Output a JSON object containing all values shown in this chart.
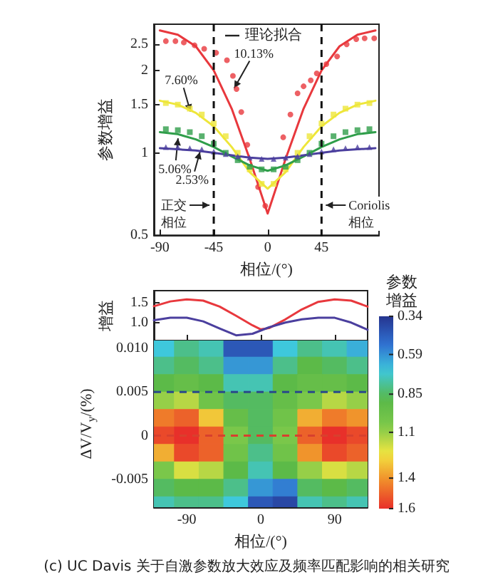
{
  "chart_data": [
    {
      "type": "line",
      "xlabel": "相位/(°)",
      "ylabel": "参数增益",
      "xlim": [
        -95,
        93
      ],
      "xticks": [
        -90,
        -45,
        0,
        45
      ],
      "ylim": [
        0.5,
        2.95
      ],
      "yticks": [
        0.5,
        1,
        1.5,
        2,
        2.5
      ],
      "log": "y",
      "series": [
        {
          "type": "line",
          "color": "#e8383d",
          "x": [
            -90,
            -75,
            -60,
            -45,
            -30,
            -15,
            0,
            15,
            30,
            45,
            60,
            75,
            90
          ],
          "values": [
            2.8,
            2.7,
            2.45,
            2.0,
            1.45,
            0.95,
            0.6,
            0.95,
            1.45,
            2.0,
            2.45,
            2.7,
            2.8
          ]
        },
        {
          "type": "line",
          "color": "#eee63a",
          "x": [
            -90,
            -75,
            -60,
            -45,
            -30,
            -15,
            0,
            15,
            30,
            45,
            60,
            75,
            90
          ],
          "values": [
            1.55,
            1.5,
            1.4,
            1.25,
            1.05,
            0.85,
            0.74,
            0.85,
            1.05,
            1.25,
            1.4,
            1.5,
            1.55
          ]
        },
        {
          "type": "line",
          "color": "#2f9e4a",
          "x": [
            -90,
            -75,
            -60,
            -45,
            -30,
            -15,
            0,
            15,
            30,
            45,
            60,
            75,
            90
          ],
          "values": [
            1.19,
            1.17,
            1.12,
            1.05,
            0.97,
            0.9,
            0.86,
            0.9,
            0.97,
            1.05,
            1.12,
            1.17,
            1.19
          ]
        },
        {
          "type": "line",
          "color": "#4b3f9e",
          "x": [
            -90,
            -75,
            -60,
            -45,
            -30,
            -15,
            0,
            15,
            30,
            45,
            60,
            75,
            90
          ],
          "values": [
            1.04,
            1.03,
            1.02,
            1.0,
            0.98,
            0.96,
            0.95,
            0.96,
            0.98,
            1.0,
            1.02,
            1.03,
            1.04
          ]
        },
        {
          "type": "scatter",
          "marker": "circle",
          "color": "#e8383d",
          "x": [
            -85,
            -77,
            -70,
            -61,
            -53,
            -43,
            -34,
            -29,
            -26,
            -22,
            -17,
            -8,
            -2,
            13,
            19,
            25,
            30,
            36,
            41,
            49,
            58,
            66,
            74,
            81,
            89
          ],
          "values": [
            2.56,
            2.56,
            2.53,
            2.47,
            2.4,
            2.32,
            2.18,
            1.91,
            1.71,
            1.41,
            1.07,
            0.75,
            0.64,
            1.14,
            1.38,
            1.65,
            1.75,
            1.84,
            1.95,
            2.11,
            2.25,
            2.49,
            2.6,
            2.62,
            2.62
          ]
        },
        {
          "type": "scatter",
          "marker": "square",
          "color": "#eee63a",
          "x": [
            -85,
            -75,
            -65,
            -55,
            -45,
            -35,
            -25,
            -15,
            -5,
            5,
            15,
            25,
            35,
            45,
            55,
            65,
            75,
            85
          ],
          "values": [
            1.52,
            1.5,
            1.45,
            1.38,
            1.28,
            1.15,
            1.0,
            0.87,
            0.77,
            0.77,
            0.87,
            1.0,
            1.15,
            1.28,
            1.38,
            1.45,
            1.5,
            1.52
          ]
        },
        {
          "type": "scatter",
          "marker": "square",
          "color": "#2f9e4a",
          "x": [
            -85,
            -75,
            -65,
            -55,
            -45,
            -35,
            -25,
            -15,
            -5,
            5,
            15,
            25,
            35,
            45,
            55,
            65,
            75,
            85
          ],
          "values": [
            1.22,
            1.21,
            1.19,
            1.15,
            1.08,
            1.0,
            0.94,
            0.89,
            0.87,
            0.87,
            0.89,
            0.94,
            1.0,
            1.08,
            1.15,
            1.19,
            1.21,
            1.22
          ]
        },
        {
          "type": "scatter",
          "marker": "triangle",
          "color": "#4b3f9e",
          "x": [
            -85,
            -75,
            -65,
            -55,
            -45,
            -35,
            -25,
            -15,
            -5,
            5,
            15,
            25,
            35,
            45,
            55,
            65,
            75,
            85
          ],
          "values": [
            1.05,
            1.05,
            1.04,
            1.03,
            1.01,
            0.99,
            0.97,
            0.96,
            0.95,
            0.95,
            0.96,
            0.97,
            0.99,
            1.01,
            1.03,
            1.04,
            1.05,
            1.05
          ]
        }
      ],
      "ref_lines": [
        {
          "axis": "x",
          "value": -45,
          "label": "正交相位",
          "line_style": "dashed",
          "color": "#111111"
        },
        {
          "axis": "x",
          "value": 45,
          "label": "Coriolis相位",
          "line_style": "dashed",
          "color": "#111111"
        }
      ],
      "annotations": [
        "理论拟合",
        {
          "text": "10.13%",
          "x": -27,
          "y": 1.75
        },
        {
          "text": "7.60%",
          "x": -65,
          "y": 1.44
        },
        {
          "text": "5.06%",
          "x": -75,
          "y": 1.11
        },
        {
          "text": "2.53%",
          "x": -57,
          "y": 0.99
        }
      ]
    },
    {
      "type": "line",
      "ylabel": "增益",
      "xlim": [
        -130,
        130
      ],
      "xticks": [
        -90,
        0,
        90
      ],
      "ylim": [
        0.55,
        1.8
      ],
      "yticks": [
        {
          "value": 1,
          "label": "1.0"
        },
        1.5
      ],
      "tick_labels": "y",
      "series": [
        {
          "color": "#e8383d",
          "x": [
            -130,
            -110,
            -90,
            -70,
            -50,
            -30,
            -10,
            0,
            10,
            30,
            50,
            70,
            90,
            110,
            130
          ],
          "values": [
            1.41,
            1.53,
            1.58,
            1.55,
            1.4,
            1.17,
            0.93,
            0.83,
            0.86,
            1.08,
            1.33,
            1.52,
            1.58,
            1.55,
            1.4
          ]
        },
        {
          "color": "#4b3f9e",
          "x": [
            -130,
            -110,
            -90,
            -70,
            -50,
            -30,
            -10,
            0,
            10,
            30,
            50,
            70,
            90,
            110,
            130
          ],
          "values": [
            1.06,
            1.12,
            1.12,
            1.03,
            0.85,
            0.68,
            0.72,
            0.8,
            0.88,
            1.0,
            1.08,
            1.12,
            1.12,
            1.0,
            0.82
          ]
        }
      ]
    },
    {
      "type": "heatmap",
      "xlabel": "相位/(°)",
      "ylabel": "ΔV/V$_{y}$/(%)",
      "clabel": "参数增益",
      "xlim": [
        -130,
        130
      ],
      "xticks": [
        -90,
        0,
        90
      ],
      "ylim": [
        -0.0082,
        0.0109
      ],
      "yticks": [
        -0.005,
        0,
        0.005,
        {
          "value": 0.01,
          "label": "0.010"
        }
      ],
      "x": [
        -120,
        -90,
        -60,
        -30,
        0,
        30,
        60,
        90,
        120
      ],
      "y": [
        0.01,
        0.008,
        0.006,
        0.004,
        0.002,
        0,
        -0.002,
        -0.004,
        -0.006,
        -0.008
      ],
      "cells": [
        [
          0.7,
          0.8,
          0.75,
          0.45,
          0.45,
          0.7,
          0.8,
          0.75,
          0.65
        ],
        [
          0.8,
          0.85,
          0.8,
          0.6,
          0.6,
          0.8,
          0.9,
          0.85,
          0.8
        ],
        [
          0.9,
          0.95,
          0.9,
          0.75,
          0.75,
          0.9,
          0.95,
          0.95,
          0.9
        ],
        [
          1.1,
          1.15,
          1.0,
          0.85,
          0.85,
          0.95,
          1.05,
          1.15,
          1.1
        ],
        [
          1.45,
          1.5,
          1.3,
          0.95,
          0.85,
          1.0,
          1.35,
          1.45,
          1.4
        ],
        [
          1.55,
          1.6,
          1.5,
          1.05,
          0.85,
          1.05,
          1.5,
          1.6,
          1.55
        ],
        [
          1.35,
          1.55,
          1.5,
          1.0,
          0.8,
          1.0,
          1.4,
          1.55,
          1.5
        ],
        [
          1.05,
          1.2,
          1.15,
          0.9,
          0.75,
          0.9,
          1.1,
          1.2,
          1.15
        ],
        [
          0.85,
          0.9,
          0.9,
          0.8,
          0.6,
          0.55,
          0.85,
          0.9,
          0.85
        ],
        [
          0.75,
          0.8,
          0.8,
          0.7,
          0.45,
          0.4,
          0.75,
          0.8,
          0.75
        ]
      ],
      "clim": [
        1.6,
        0.34
      ],
      "cticks": [
        0.34,
        0.59,
        0.85,
        1.1,
        1.4,
        1.6
      ],
      "ref_lines": [
        {
          "axis": "y",
          "value": 0.005,
          "line_style": "dashed",
          "color": "#2a4a8a"
        },
        {
          "axis": "y",
          "value": 0,
          "line_style": "dashed",
          "color": "#d8402e"
        }
      ],
      "annotations": [
        "(c) UC Davis 关于自激参数放大效应及频率匹配影响的相关研究"
      ]
    }
  ]
}
